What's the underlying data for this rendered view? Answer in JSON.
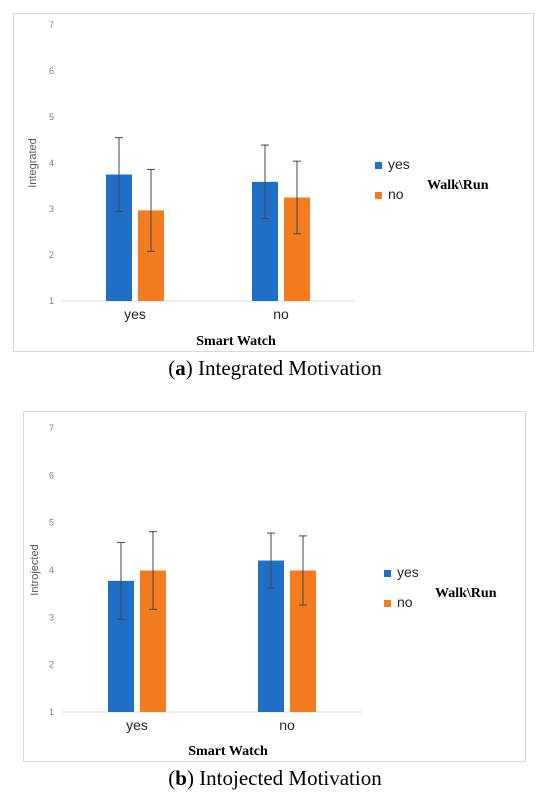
{
  "colors": {
    "yes": "#1f6fc6",
    "no": "#f47c20",
    "axis": "#d9d9d9",
    "tick": "#7f7f7f",
    "error": "#444444"
  },
  "captions": [
    {
      "letter": "a",
      "text": "Integrated Motivation"
    },
    {
      "letter": "b",
      "text": "Intojected Motivation"
    }
  ],
  "chart_data": [
    {
      "type": "bar",
      "categories": [
        "yes",
        "no"
      ],
      "series": [
        {
          "name": "yes",
          "values": [
            3.75,
            3.59
          ],
          "errors": [
            0.8,
            0.8
          ]
        },
        {
          "name": "no",
          "values": [
            2.97,
            3.25
          ],
          "errors": [
            0.89,
            0.79
          ]
        }
      ],
      "ylabel": "Integrated",
      "xlabel": "Smart Watch",
      "legend_title": "Walk\\Run",
      "legend_position": "right",
      "ylim": [
        1,
        7
      ],
      "yticks": [
        "1",
        "2",
        "3",
        "4",
        "5",
        "6",
        "7"
      ],
      "grid": false
    },
    {
      "type": "bar",
      "categories": [
        "yes",
        "no"
      ],
      "series": [
        {
          "name": "yes",
          "values": [
            3.77,
            4.2
          ],
          "errors": [
            0.81,
            0.58
          ]
        },
        {
          "name": "no",
          "values": [
            3.99,
            3.99
          ],
          "errors": [
            0.82,
            0.73
          ]
        }
      ],
      "ylabel": "Introjected",
      "xlabel": "Smart Watch",
      "legend_title": "Walk\\Run",
      "legend_position": "right",
      "ylim": [
        1,
        7
      ],
      "yticks": [
        "1",
        "2",
        "3",
        "4",
        "5",
        "6",
        "7"
      ],
      "grid": false
    }
  ]
}
